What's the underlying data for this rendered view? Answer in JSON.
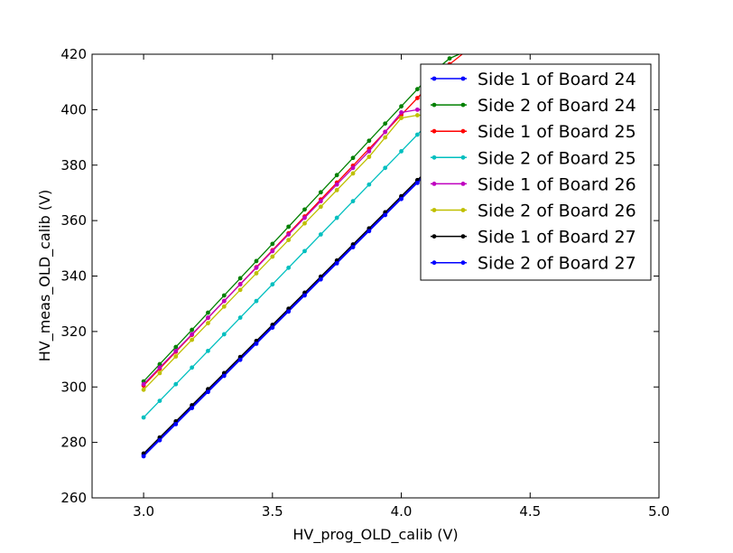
{
  "chart_data": {
    "type": "line",
    "xlabel": "HV_prog_OLD_calib (V)",
    "ylabel": "HV_meas_OLD_calib (V)",
    "xlim": [
      2.8,
      5.0
    ],
    "ylim": [
      260,
      420
    ],
    "xticks": [
      3.0,
      3.5,
      4.0,
      4.5,
      5.0
    ],
    "xtick_labels": [
      "3.0",
      "3.5",
      "4.0",
      "4.5",
      "5.0"
    ],
    "yticks": [
      260,
      280,
      300,
      320,
      340,
      360,
      380,
      400,
      420
    ],
    "ytick_labels": [
      "260",
      "280",
      "300",
      "320",
      "340",
      "360",
      "380",
      "400",
      "420"
    ],
    "grid": false,
    "legend_position": "top-right",
    "x": [
      3.0,
      3.0625,
      3.125,
      3.1875,
      3.25,
      3.3125,
      3.375,
      3.4375,
      3.5,
      3.5625,
      3.625,
      3.6875,
      3.75,
      3.8125,
      3.875,
      3.9375,
      4.0,
      4.0625,
      4.125,
      4.1875,
      4.25
    ],
    "series": [
      {
        "name": "Side 1 of Board 24",
        "color": "#0000ff",
        "values": [
          275.5,
          281.3,
          287.1,
          292.9,
          298.7,
          304.5,
          310.3,
          316.1,
          321.9,
          327.7,
          333.5,
          339.3,
          345.1,
          350.9,
          356.7,
          362.5,
          368.3,
          374.1,
          379.9,
          385.7,
          391.5
        ]
      },
      {
        "name": "Side 2 of Board 24",
        "color": "#008000",
        "values": [
          302.0,
          308.2,
          314.4,
          320.6,
          326.8,
          333.0,
          339.2,
          345.4,
          351.6,
          357.8,
          364.0,
          370.2,
          376.4,
          382.6,
          388.8,
          395.0,
          401.2,
          407.4,
          413.6,
          418.5,
          421.0
        ]
      },
      {
        "name": "Side 1 of Board 25",
        "color": "#ff0000",
        "values": [
          300.5,
          306.6,
          312.7,
          318.8,
          324.9,
          331.0,
          337.1,
          343.2,
          349.3,
          355.4,
          361.5,
          367.6,
          373.7,
          379.8,
          385.9,
          392.0,
          398.1,
          404.2,
          410.3,
          416.4,
          421.0
        ]
      },
      {
        "name": "Side 2 of Board 25",
        "color": "#00bfbf",
        "values": [
          289.0,
          295.0,
          301.0,
          307.0,
          313.0,
          319.0,
          325.0,
          331.0,
          337.0,
          343.0,
          349.0,
          355.0,
          361.0,
          367.0,
          373.0,
          379.0,
          385.0,
          391.0,
          397.0,
          403.0,
          409.0
        ]
      },
      {
        "name": "Side 1 of Board 26",
        "color": "#bf00bf",
        "values": [
          301.0,
          307.0,
          313.0,
          319.0,
          325.0,
          331.0,
          337.0,
          343.0,
          349.0,
          355.0,
          361.0,
          367.0,
          373.0,
          379.0,
          385.0,
          392.0,
          399.0,
          400.0,
          400.0,
          400.0,
          400.0
        ]
      },
      {
        "name": "Side 2 of Board 26",
        "color": "#bfbf00",
        "values": [
          299.0,
          305.0,
          311.0,
          317.0,
          323.0,
          329.0,
          335.0,
          341.0,
          347.0,
          353.0,
          359.0,
          365.0,
          371.0,
          377.0,
          383.0,
          390.0,
          397.0,
          398.0,
          398.0,
          398.0,
          398.0
        ]
      },
      {
        "name": "Side 1 of Board 27",
        "color": "#000000",
        "values": [
          276.0,
          281.8,
          287.6,
          293.4,
          299.2,
          305.0,
          310.8,
          316.6,
          322.4,
          328.2,
          334.0,
          339.8,
          345.6,
          351.4,
          357.2,
          363.0,
          368.8,
          374.6,
          380.4,
          386.2,
          392.0
        ]
      },
      {
        "name": "Side 2 of Board 27",
        "color": "#0000ff",
        "values": [
          275.0,
          280.8,
          286.6,
          292.4,
          298.2,
          304.0,
          309.8,
          315.6,
          321.4,
          327.2,
          333.0,
          338.8,
          344.6,
          350.4,
          356.2,
          362.0,
          367.8,
          373.6,
          379.4,
          385.2,
          391.0
        ]
      }
    ]
  }
}
